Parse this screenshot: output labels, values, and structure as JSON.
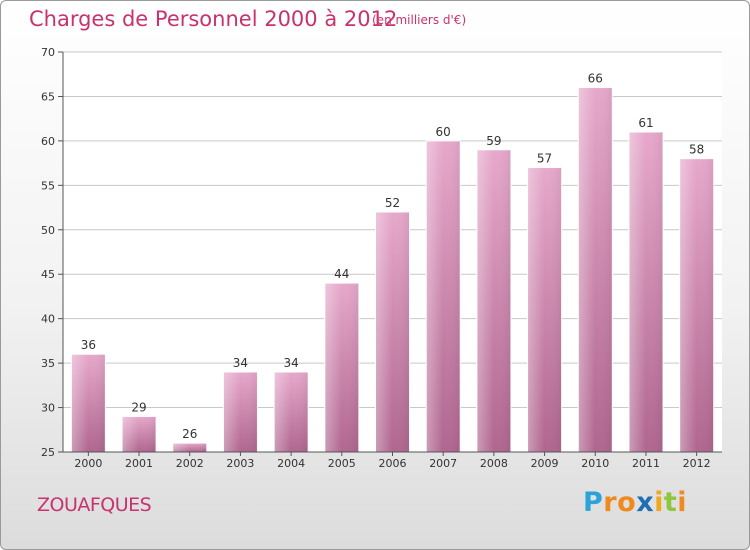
{
  "chart_data": {
    "type": "bar",
    "title": "Charges de Personnel 2000 à 2012",
    "subtitle": "(en milliers d'€)",
    "categories": [
      "2000",
      "2001",
      "2002",
      "2003",
      "2004",
      "2005",
      "2006",
      "2007",
      "2008",
      "2009",
      "2010",
      "2011",
      "2012"
    ],
    "values": [
      36,
      29,
      26,
      34,
      34,
      44,
      52,
      60,
      59,
      57,
      66,
      61,
      58
    ],
    "ylim": [
      25,
      70
    ],
    "yticks": [
      25,
      30,
      35,
      40,
      45,
      50,
      55,
      60,
      65,
      70
    ],
    "grid": true,
    "bar_color": "#d98db6"
  },
  "location": "ZOUAFQUES",
  "logo": {
    "letters": [
      "P",
      "r",
      "o",
      "x",
      "i",
      "t",
      "i"
    ],
    "colors": [
      "#2aa3d8",
      "#f08a1e",
      "#f08a1e",
      "#1f6fb5",
      "#f0a81e",
      "#8dc63f",
      "#f08a1e"
    ]
  }
}
